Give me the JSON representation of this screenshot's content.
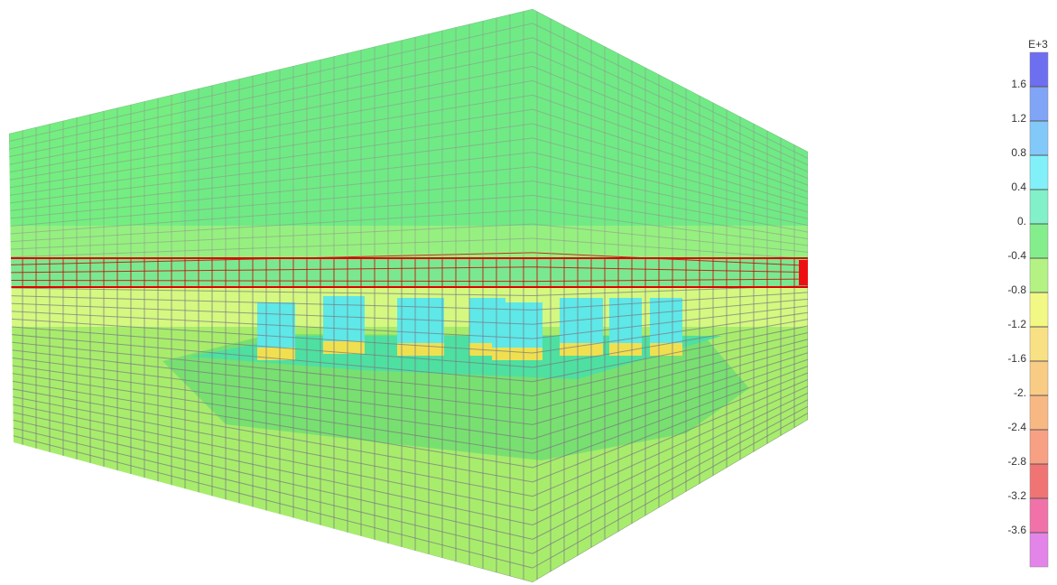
{
  "legend": {
    "exponent": "E+3",
    "labels": [
      "1.6",
      "1.2",
      "0.8",
      "0.4",
      "0.",
      "-0.4",
      "-0.8",
      "-1.2",
      "-1.6",
      "-2.",
      "-2.4",
      "-2.8",
      "-3.2",
      "-3.6"
    ],
    "colors": [
      "#6e6ef0",
      "#80a4f6",
      "#82c8f8",
      "#82f0f8",
      "#82f0c8",
      "#84ee8c",
      "#b4f284",
      "#f2f884",
      "#f8e084",
      "#f8cc84",
      "#f8b884",
      "#f8a084",
      "#f07474",
      "#f072a8",
      "#e284e8"
    ]
  }
}
